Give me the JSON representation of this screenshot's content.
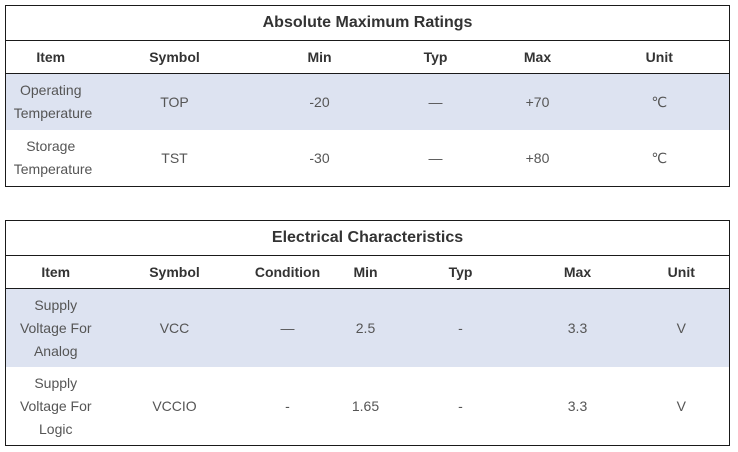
{
  "absolute_max": {
    "title": "Absolute Maximum Ratings",
    "headers": {
      "item": "Item",
      "symbol": "Symbol",
      "min": "Min",
      "typ": "Typ",
      "max": "Max",
      "unit": "Unit"
    },
    "rows": [
      {
        "item": "Operating Temperature",
        "symbol": "TOP",
        "min": "-20",
        "typ": "—",
        "max": "+70",
        "unit": "℃"
      },
      {
        "item": "Storage Temperature",
        "symbol": "TST",
        "min": "-30",
        "typ": "—",
        "max": "+80",
        "unit": "℃"
      }
    ]
  },
  "electrical": {
    "title": "Electrical Characteristics",
    "headers": {
      "item": "Item",
      "symbol": "Symbol",
      "condition": "Condition",
      "min": "Min",
      "typ": "Typ",
      "max": "Max",
      "unit": "Unit"
    },
    "rows": [
      {
        "item": "Supply Voltage For Analog",
        "symbol": "VCC",
        "condition": "—",
        "min": "2.5",
        "typ": "-",
        "max": "3.3",
        "unit": "V"
      },
      {
        "item": "Supply Voltage For Logic",
        "symbol": "VCCIO",
        "condition": "-",
        "min": "1.65",
        "typ": "-",
        "max": "3.3",
        "unit": "V"
      }
    ]
  },
  "colors": {
    "row_highlight": "#dde3f1",
    "border": "#1a1a1a"
  }
}
